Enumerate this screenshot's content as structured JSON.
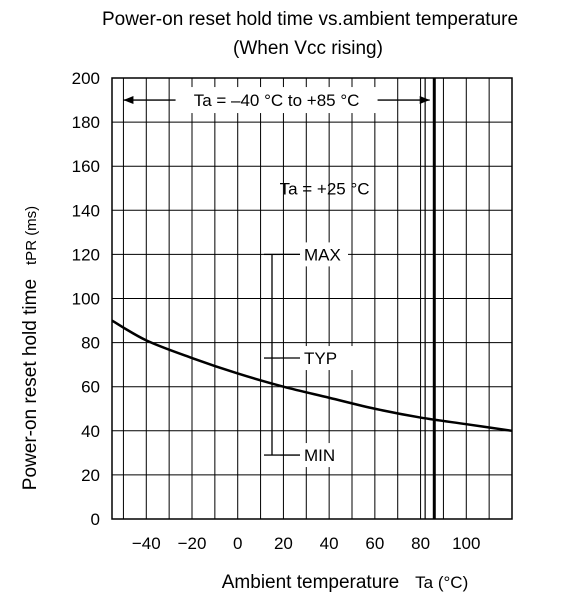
{
  "chart_data": {
    "type": "line",
    "title": "Power-on reset hold time vs.ambient temperature",
    "subtitle": "(When Vcc rising)",
    "ylabel": "Power-on reset hold time",
    "ylabel_symbol": "tPR (ms)",
    "xlabel": "Ambient temperature",
    "xlabel_unit": "Ta (°C)",
    "xlim": [
      -55,
      120
    ],
    "ylim": [
      0,
      200
    ],
    "x_ticks": [
      -40,
      -20,
      0,
      20,
      40,
      60,
      80,
      100
    ],
    "y_ticks": [
      0,
      20,
      40,
      60,
      80,
      100,
      120,
      140,
      160,
      180,
      200
    ],
    "grid": true,
    "series": [
      {
        "x": [
          -55,
          -40,
          -20,
          0,
          20,
          40,
          60,
          80,
          100,
          120
        ],
        "y": [
          90,
          81,
          73,
          66,
          60,
          55,
          50,
          46,
          43,
          40
        ]
      }
    ],
    "range_annotation": {
      "text": "Ta = –40 °C to +85 °C",
      "from": -40,
      "to": 85,
      "y": 190
    },
    "boundary_lines": [
      82,
      86
    ],
    "spec_at_25C": {
      "label": "Ta = +25 °C",
      "x": 15,
      "max": {
        "label": "MAX",
        "value": 120
      },
      "typ": {
        "label": "TYP",
        "value": 73
      },
      "min": {
        "label": "MIN",
        "value": 29
      }
    }
  }
}
